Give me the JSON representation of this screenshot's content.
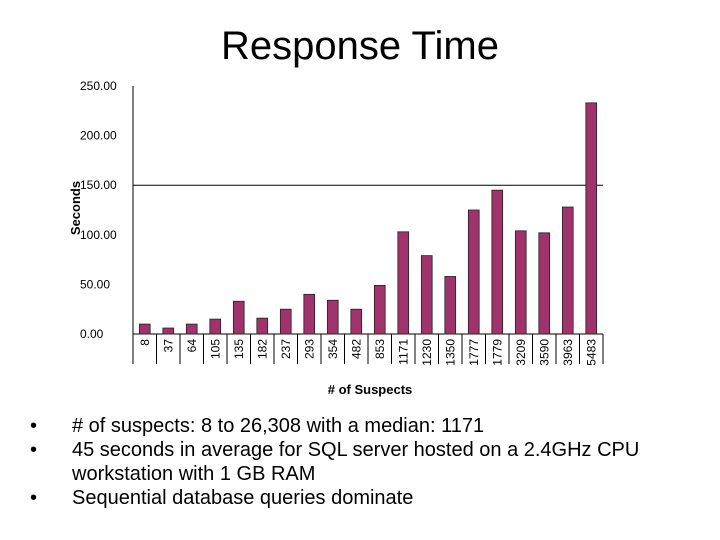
{
  "title": "Response Time",
  "chart_data": {
    "type": "bar",
    "ylabel": "Seconds",
    "xlabel": "# of Suspects",
    "ylim": [
      0,
      250
    ],
    "yticks": [
      "0.00",
      "50.00",
      "100.00",
      "150.00",
      "200.00",
      "250.00"
    ],
    "reference_line": 150,
    "categories": [
      "8",
      "37",
      "64",
      "105",
      "135",
      "182",
      "237",
      "293",
      "354",
      "482",
      "853",
      "1171",
      "1230",
      "1350",
      "1777",
      "1779",
      "3209",
      "3590",
      "3963",
      "5483"
    ],
    "values": [
      10,
      6,
      10,
      15,
      33,
      16,
      25,
      40,
      34,
      25,
      49,
      103,
      79,
      58,
      125,
      145,
      104,
      102,
      128,
      233
    ],
    "bar_color": "#a0336b"
  },
  "bullets": [
    "# of suspects: 8 to 26,308 with a median: 1171",
    "45 seconds in average for SQL server hosted on a 2.4GHz CPU workstation with 1 GB RAM",
    "Sequential database queries dominate"
  ]
}
